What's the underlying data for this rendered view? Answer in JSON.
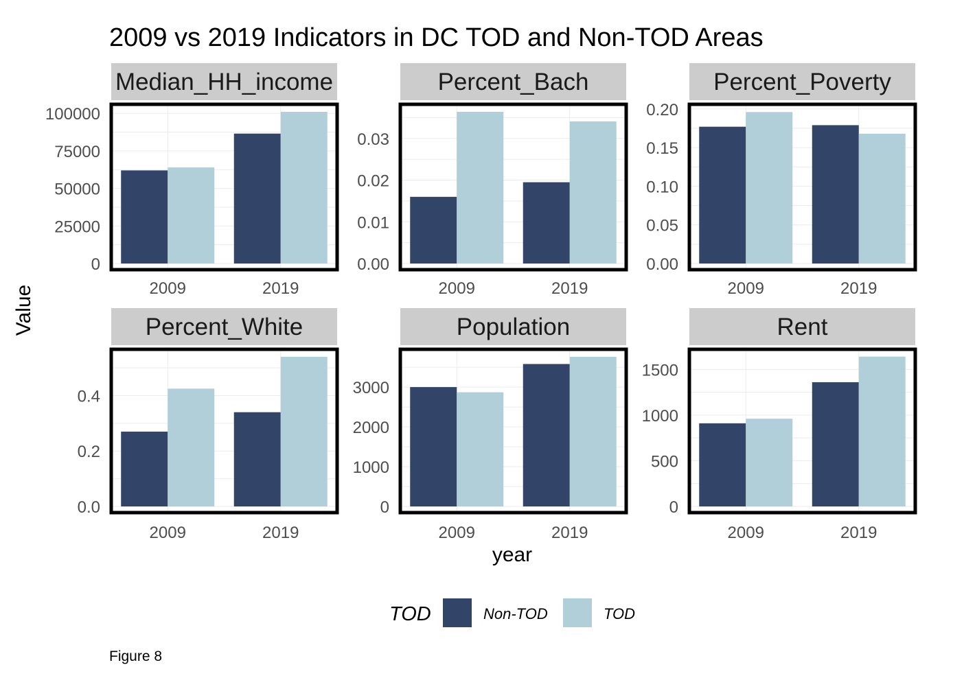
{
  "chart_data": {
    "type": "bar",
    "title": "2009 vs 2019 Indicators in DC TOD and Non-TOD Areas",
    "xlabel": "year",
    "ylabel": "Value",
    "caption": "Figure 8",
    "categories": [
      "2009",
      "2019"
    ],
    "grid": true,
    "legend": {
      "title": "TOD",
      "position": "bottom",
      "entries": [
        {
          "name": "Non-TOD",
          "color": "#324569"
        },
        {
          "name": "TOD",
          "color": "#b1cfd9"
        }
      ]
    },
    "facets": [
      {
        "name": "Median_HH_income",
        "ylim": [
          0,
          106000
        ],
        "yticks": [
          0,
          25000,
          50000,
          75000,
          100000
        ],
        "ytick_labels": [
          "0",
          "25000",
          "50000",
          "75000",
          "100000"
        ],
        "series": [
          {
            "name": "Non-TOD",
            "values": [
              62000,
              86500
            ]
          },
          {
            "name": "TOD",
            "values": [
              64000,
              101000
            ]
          }
        ]
      },
      {
        "name": "Percent_Bach",
        "ylim": [
          0,
          0.0382
        ],
        "yticks": [
          0,
          0.01,
          0.02,
          0.03
        ],
        "ytick_labels": [
          "0.00",
          "0.01",
          "0.02",
          "0.03"
        ],
        "series": [
          {
            "name": "Non-TOD",
            "values": [
              0.016,
              0.0195
            ]
          },
          {
            "name": "TOD",
            "values": [
              0.0364,
              0.0341
            ]
          }
        ]
      },
      {
        "name": "Percent_Poverty",
        "ylim": [
          0,
          0.206
        ],
        "yticks": [
          0,
          0.05,
          0.1,
          0.15,
          0.2
        ],
        "ytick_labels": [
          "0.00",
          "0.05",
          "0.10",
          "0.15",
          "0.20"
        ],
        "series": [
          {
            "name": "Non-TOD",
            "values": [
              0.177,
              0.179
            ]
          },
          {
            "name": "TOD",
            "values": [
              0.196,
              0.168
            ]
          }
        ]
      },
      {
        "name": "Percent_White",
        "ylim": [
          0,
          0.567
        ],
        "yticks": [
          0,
          0.2,
          0.4
        ],
        "ytick_labels": [
          "0.0",
          "0.2",
          "0.4"
        ],
        "series": [
          {
            "name": "Non-TOD",
            "values": [
              0.27,
              0.34
            ]
          },
          {
            "name": "TOD",
            "values": [
              0.425,
              0.54
            ]
          }
        ]
      },
      {
        "name": "Population",
        "ylim": [
          0,
          3950
        ],
        "yticks": [
          0,
          1000,
          2000,
          3000
        ],
        "ytick_labels": [
          "0",
          "1000",
          "2000",
          "3000"
        ],
        "series": [
          {
            "name": "Non-TOD",
            "values": [
              3000,
              3580
            ]
          },
          {
            "name": "TOD",
            "values": [
              2870,
              3760
            ]
          }
        ]
      },
      {
        "name": "Rent",
        "ylim": [
          0,
          1720
        ],
        "yticks": [
          0,
          500,
          1000,
          1500
        ],
        "ytick_labels": [
          "0",
          "500",
          "1000",
          "1500"
        ],
        "series": [
          {
            "name": "Non-TOD",
            "values": [
              910,
              1360
            ]
          },
          {
            "name": "TOD",
            "values": [
              960,
              1640
            ]
          }
        ]
      }
    ]
  }
}
